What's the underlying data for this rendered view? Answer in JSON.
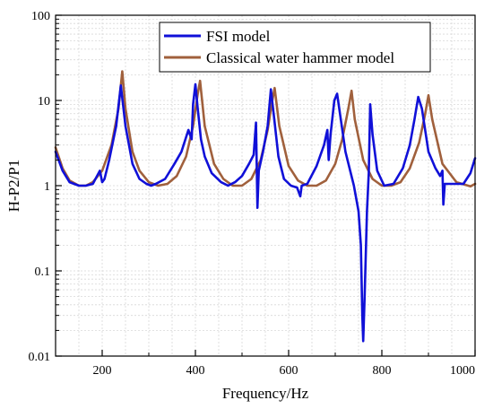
{
  "chart_data": {
    "type": "line",
    "xlabel": "Frequency/Hz",
    "ylabel": "H-P2/P1",
    "xlim": [
      100,
      1000
    ],
    "ylim": [
      0.01,
      100
    ],
    "yscale": "log",
    "grid": true,
    "legend_position": "top-right",
    "x_ticks": [
      200,
      400,
      600,
      800,
      1000
    ],
    "x_tick_labels": [
      "200",
      "400",
      "600",
      "800",
      "1000"
    ],
    "y_ticks": [
      0.01,
      0.1,
      1,
      10,
      100
    ],
    "y_tick_labels": [
      "0.01",
      "0.1",
      "1",
      "10",
      "100"
    ],
    "series": [
      {
        "name": "FSI model",
        "color": "#1010d8",
        "x": [
          100,
          115,
          130,
          150,
          165,
          180,
          195,
          200,
          205,
          215,
          230,
          240,
          250,
          265,
          280,
          295,
          305,
          315,
          335,
          355,
          370,
          385,
          392,
          395,
          400,
          405,
          412,
          420,
          435,
          455,
          470,
          485,
          500,
          515,
          525,
          530,
          533,
          536,
          545,
          555,
          562,
          570,
          578,
          590,
          605,
          618,
          625,
          628,
          640,
          660,
          676,
          683,
          686,
          690,
          698,
          704,
          712,
          722,
          740,
          750,
          755,
          758,
          760,
          763,
          768,
          772,
          775,
          780,
          790,
          805,
          825,
          845,
          860,
          870,
          878,
          886,
          900,
          915,
          925,
          930,
          932,
          935,
          950,
          975,
          990,
          1000
        ],
        "values": [
          2.5,
          1.5,
          1.1,
          1.0,
          1.0,
          1.05,
          1.5,
          1.1,
          1.2,
          2.0,
          5.0,
          15.0,
          5.0,
          1.8,
          1.2,
          1.05,
          1.0,
          1.05,
          1.2,
          1.8,
          2.5,
          4.5,
          3.5,
          9.0,
          15.5,
          8.0,
          3.5,
          2.2,
          1.4,
          1.1,
          1.0,
          1.1,
          1.3,
          1.8,
          2.3,
          5.5,
          0.55,
          1.5,
          2.5,
          5.0,
          13.5,
          5.5,
          2.2,
          1.2,
          1.0,
          0.95,
          0.75,
          1.0,
          1.05,
          1.7,
          3.0,
          4.5,
          2.0,
          4.0,
          10.0,
          12.0,
          6.0,
          2.5,
          1.0,
          0.5,
          0.2,
          0.03,
          0.015,
          0.05,
          0.5,
          1.4,
          9.0,
          4.0,
          1.5,
          1.0,
          1.05,
          1.6,
          3.0,
          6.0,
          11.0,
          8.0,
          2.5,
          1.6,
          1.3,
          1.5,
          0.6,
          1.05,
          1.05,
          1.05,
          1.4,
          2.1
        ]
      },
      {
        "name": "Classical water hammer model",
        "color": "#a0603c",
        "x": [
          100,
          115,
          130,
          150,
          165,
          180,
          200,
          220,
          235,
          243,
          250,
          265,
          280,
          300,
          320,
          340,
          360,
          380,
          395,
          405,
          410,
          420,
          440,
          460,
          480,
          500,
          520,
          540,
          555,
          565,
          570,
          580,
          600,
          620,
          640,
          660,
          680,
          700,
          715,
          728,
          735,
          742,
          760,
          780,
          800,
          820,
          840,
          860,
          880,
          893,
          900,
          908,
          930,
          960,
          990,
          1000
        ],
        "values": [
          2.8,
          1.6,
          1.15,
          1.0,
          1.0,
          1.1,
          1.5,
          3.0,
          8.0,
          22.0,
          8.0,
          2.5,
          1.5,
          1.1,
          1.0,
          1.05,
          1.3,
          2.2,
          5.0,
          12.0,
          17.0,
          5.0,
          1.8,
          1.2,
          1.0,
          1.0,
          1.2,
          2.0,
          4.5,
          10.0,
          14.0,
          5.0,
          1.7,
          1.15,
          1.0,
          1.0,
          1.15,
          1.8,
          3.5,
          8.0,
          13.0,
          6.0,
          2.0,
          1.2,
          1.0,
          1.0,
          1.1,
          1.6,
          3.2,
          7.0,
          11.5,
          6.0,
          1.8,
          1.1,
          0.98,
          1.05
        ]
      }
    ]
  }
}
